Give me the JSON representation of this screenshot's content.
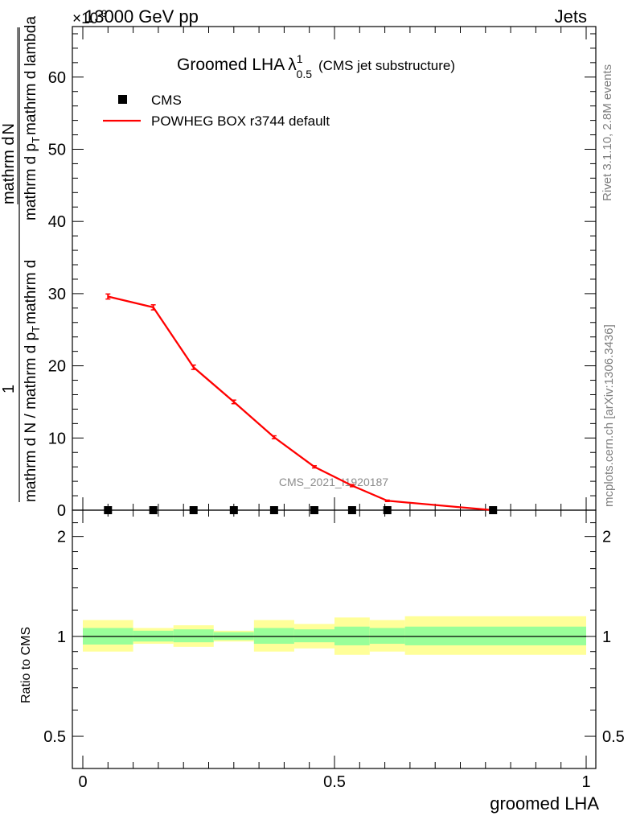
{
  "header": {
    "energy": "13000 GeV pp",
    "category": "Jets",
    "scale_prefix": "×10",
    "scale_exponent": "-3"
  },
  "title": {
    "main": "Groomed LHA",
    "lambda": "λ",
    "sup": "1",
    "sub": "0.5",
    "suffix": "(CMS jet substructure)"
  },
  "legend": {
    "placement": "top-left",
    "data_label": "CMS",
    "mc_label": "POWHEG BOX r3744 default"
  },
  "side_labels": {
    "rivet": "Rivet 3.1.10,  2.8M events",
    "mcplots": "mcplots.cern.ch [arXiv:1306.3436]"
  },
  "analysis_label": "CMS_2021_I1920187",
  "y_axis_label": {
    "numerator": "1",
    "denominator": "mathrm d N / mathrm d p",
    "denominator_sub": "T",
    "rest": "mathrm d N",
    "rest_sub_lines": [
      "mathrm d p",
      "T",
      "mathrm d lambda"
    ],
    "upper": "mathrm d",
    "upper_2": "N",
    "full_lower": "mathrm d N / mathrm d p",
    "full_lower_sub": "T",
    "full_lower_tail": "mathrm d",
    "line_1": "1",
    "line_2_a": "mathrm d N / mathrm d p",
    "line_2_sub": "T",
    "line_2_b": "mathrm d",
    "line_3": "mathrm d",
    "line_3_b": "N",
    "line_4": "mathrm d p",
    "line_4_sub": "T",
    "line_4_b": "mathrm d lambda"
  },
  "ratio_axis_label": "Ratio to CMS",
  "x_axis_label": "groomed LHA",
  "colors": {
    "mc": "#ff0000",
    "data": "#000000",
    "band_inner": "#99ff99",
    "band_outer": "#ffff99"
  },
  "chart_data": [
    {
      "type": "line",
      "panel": "main",
      "xlim": [
        0,
        1
      ],
      "ylim": [
        0,
        67
      ],
      "y_scale_factor": 0.001,
      "yticks": [
        0,
        10,
        20,
        30,
        40,
        50,
        60
      ],
      "xticks": [
        0,
        0.5,
        1
      ],
      "grid": false,
      "series": [
        {
          "name": "CMS",
          "kind": "points",
          "x": [
            0.05,
            0.14,
            0.22,
            0.3,
            0.38,
            0.46,
            0.535,
            0.605,
            0.815
          ],
          "y": [
            0,
            0,
            0,
            0,
            0,
            0,
            0,
            0,
            0
          ]
        },
        {
          "name": "POWHEG BOX r3744 default",
          "kind": "line",
          "x": [
            0.05,
            0.14,
            0.22,
            0.3,
            0.38,
            0.46,
            0.535,
            0.605,
            0.815
          ],
          "y": [
            29.6,
            28.1,
            19.8,
            15.0,
            10.1,
            6.0,
            3.4,
            1.3,
            0.0
          ],
          "yerr": [
            0.35,
            0.35,
            0.3,
            0.25,
            0.2,
            0.15,
            0.15,
            0.1,
            0.05
          ]
        }
      ]
    },
    {
      "type": "area",
      "panel": "ratio",
      "xlim": [
        0,
        1
      ],
      "ylim": [
        0.4,
        2.4
      ],
      "y_scale": "log",
      "yticks": [
        0.5,
        1,
        2
      ],
      "xticks": [
        0,
        0.5,
        1
      ],
      "ylabel": "Ratio to CMS",
      "xlabel": "groomed LHA",
      "bins": [
        {
          "x0": 0.0,
          "x1": 0.1,
          "inner": [
            0.945,
            1.06
          ],
          "outer": [
            0.9,
            1.12
          ]
        },
        {
          "x0": 0.1,
          "x1": 0.18,
          "inner": [
            0.965,
            1.04
          ],
          "outer": [
            0.95,
            1.06
          ]
        },
        {
          "x0": 0.18,
          "x1": 0.26,
          "inner": [
            0.96,
            1.05
          ],
          "outer": [
            0.93,
            1.08
          ]
        },
        {
          "x0": 0.26,
          "x1": 0.34,
          "inner": [
            0.975,
            1.03
          ],
          "outer": [
            0.965,
            1.04
          ]
        },
        {
          "x0": 0.34,
          "x1": 0.42,
          "inner": [
            0.95,
            1.06
          ],
          "outer": [
            0.9,
            1.12
          ]
        },
        {
          "x0": 0.42,
          "x1": 0.5,
          "inner": [
            0.96,
            1.05
          ],
          "outer": [
            0.92,
            1.09
          ]
        },
        {
          "x0": 0.5,
          "x1": 0.57,
          "inner": [
            0.94,
            1.07
          ],
          "outer": [
            0.88,
            1.14
          ]
        },
        {
          "x0": 0.57,
          "x1": 0.64,
          "inner": [
            0.95,
            1.06
          ],
          "outer": [
            0.9,
            1.12
          ]
        },
        {
          "x0": 0.64,
          "x1": 1.0,
          "inner": [
            0.94,
            1.07
          ],
          "outer": [
            0.88,
            1.15
          ]
        }
      ],
      "reference_line": 1
    }
  ]
}
